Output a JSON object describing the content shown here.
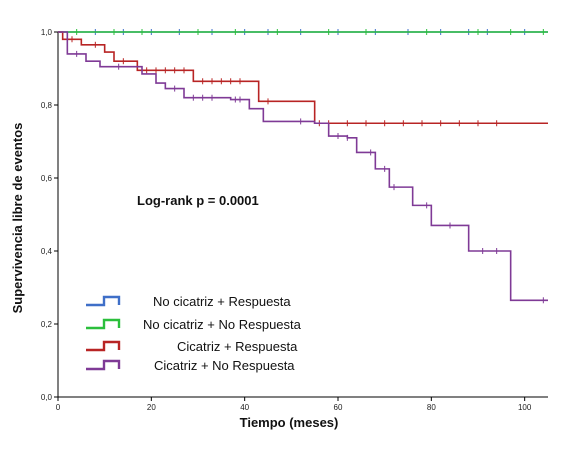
{
  "chart_data": {
    "type": "line",
    "step": true,
    "xlabel": "Tiempo (meses)",
    "ylabel": "Supervivencia libre de eventos",
    "xlim": [
      0,
      105
    ],
    "ylim": [
      0,
      1.0
    ],
    "x_ticks": [
      0,
      20,
      40,
      60,
      80,
      100
    ],
    "x_tick_labels": [
      "0",
      "20",
      "40",
      "60",
      "80",
      "100"
    ],
    "y_ticks": [
      0,
      0.2,
      0.4,
      0.6,
      0.8,
      1.0
    ],
    "y_tick_labels": [
      "0,0",
      "0,2",
      "0,4",
      "0,6",
      "0,8",
      "1,0"
    ],
    "grid": false,
    "legend_position": "bottom-left",
    "annotation": "Log-rank p = 0.0001",
    "series": [
      {
        "name": "No cicatriz + Respuesta",
        "color": "#3f6fc8",
        "steps": [
          [
            0,
            1.0
          ],
          [
            105,
            1.0
          ]
        ],
        "censored": [
          8,
          14,
          20,
          26,
          33,
          40,
          45,
          52,
          60,
          68,
          75,
          82,
          88,
          92,
          100
        ]
      },
      {
        "name": "No cicatriz + No Respuesta",
        "color": "#2bbf3c",
        "steps": [
          [
            0,
            1.0
          ],
          [
            105,
            1.0
          ]
        ],
        "censored": [
          4,
          12,
          18,
          30,
          38,
          47,
          58,
          66,
          79,
          90,
          97,
          104
        ]
      },
      {
        "name": "Cicatriz + Respuesta",
        "color": "#b82424",
        "steps": [
          [
            0,
            1.0
          ],
          [
            1,
            0.98
          ],
          [
            5,
            0.965
          ],
          [
            10,
            0.945
          ],
          [
            12,
            0.92
          ],
          [
            17,
            0.895
          ],
          [
            29,
            0.865
          ],
          [
            43,
            0.81
          ],
          [
            55,
            0.75
          ],
          [
            105,
            0.75
          ]
        ],
        "censored": [
          3,
          8,
          14,
          19,
          21,
          23,
          25,
          27,
          31,
          33,
          35,
          37,
          39,
          45,
          56,
          58,
          62,
          66,
          70,
          74,
          78,
          82,
          86,
          90,
          94
        ]
      },
      {
        "name": "Cicatriz + No Respuesta",
        "color": "#7f3a96",
        "steps": [
          [
            0,
            1.0
          ],
          [
            2,
            0.94
          ],
          [
            6,
            0.92
          ],
          [
            9,
            0.905
          ],
          [
            18,
            0.885
          ],
          [
            21,
            0.86
          ],
          [
            23,
            0.845
          ],
          [
            27,
            0.82
          ],
          [
            37,
            0.815
          ],
          [
            41,
            0.79
          ],
          [
            44,
            0.755
          ],
          [
            55,
            0.75
          ],
          [
            58,
            0.715
          ],
          [
            62,
            0.71
          ],
          [
            64,
            0.67
          ],
          [
            68,
            0.625
          ],
          [
            71,
            0.575
          ],
          [
            76,
            0.525
          ],
          [
            80,
            0.47
          ],
          [
            88,
            0.4
          ],
          [
            97,
            0.265
          ],
          [
            105,
            0.265
          ]
        ],
        "censored": [
          4,
          13,
          25,
          29,
          31,
          33,
          38,
          39,
          52,
          60,
          62,
          67,
          70,
          72,
          79,
          84,
          91,
          94,
          104
        ]
      }
    ]
  }
}
